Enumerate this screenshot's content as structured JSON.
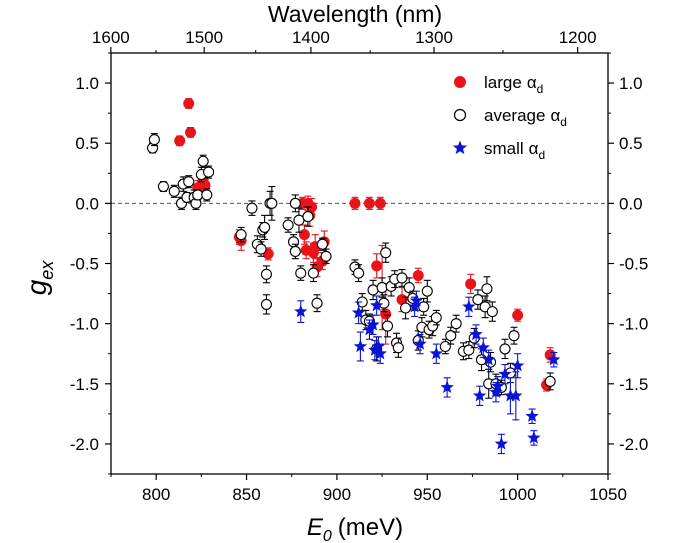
{
  "chart_data": {
    "type": "scatter",
    "title": "",
    "xlabel": "E",
    "xlabel_sub": "0",
    "xlabel_unit": "(meV)",
    "ylabel": "g",
    "ylabel_sub": "ex",
    "top_xlabel": "Wavelength (nm)",
    "xlim": [
      775,
      1050
    ],
    "ylim": [
      -2.25,
      1.25
    ],
    "x_ticks": [
      800,
      850,
      900,
      950,
      1000,
      1050
    ],
    "x_tick_labels": [
      "800",
      "850",
      "900",
      "950",
      "1000",
      "1050"
    ],
    "y_ticks": [
      1.0,
      0.5,
      0.0,
      -0.5,
      -1.0,
      -1.5,
      -2.0
    ],
    "y_tick_labels": [
      "1.0",
      "0.5",
      "0.0",
      "-0.5",
      "-1.0",
      "-1.5",
      "-2.0"
    ],
    "top_ticks_nm": [
      1600,
      1500,
      1400,
      1300,
      1200
    ],
    "top_tick_labels": [
      "1600",
      "1500",
      "1400",
      "1300",
      "1200"
    ],
    "reference_line_y": 0,
    "legend_position": "top-right",
    "series": [
      {
        "name": "large",
        "name_sub": "d",
        "marker": "filled-circle",
        "color": "#e8141a",
        "points": [
          [
            813,
            0.52,
            0.04
          ],
          [
            818,
            0.83,
            0.04
          ],
          [
            819,
            0.59,
            0.04
          ],
          [
            823,
            0.13,
            0.06
          ],
          [
            825,
            0.13,
            0.05
          ],
          [
            826,
            0.19,
            0.05
          ],
          [
            827,
            0.15,
            0.04
          ],
          [
            846,
            -0.28,
            0.06
          ],
          [
            847,
            -0.31,
            0.08
          ],
          [
            862,
            -0.42,
            0.05
          ],
          [
            881,
            0.0,
            0.05
          ],
          [
            882,
            -0.26,
            0.08
          ],
          [
            883,
            -0.39,
            0.07
          ],
          [
            884,
            0.0,
            0.06
          ],
          [
            885,
            -0.1,
            0.09
          ],
          [
            886,
            -0.03,
            0.07
          ],
          [
            887,
            -0.41,
            0.08
          ],
          [
            888,
            -0.36,
            0.1
          ],
          [
            889,
            -0.53,
            0.08
          ],
          [
            892,
            -0.48,
            0.07
          ],
          [
            893,
            -0.32,
            0.09
          ],
          [
            910,
            0.0,
            0.05
          ],
          [
            918,
            0.0,
            0.05
          ],
          [
            922,
            -0.52,
            0.1
          ],
          [
            924,
            0.0,
            0.05
          ],
          [
            925,
            -0.7,
            0.35
          ],
          [
            927,
            -0.92,
            0.25
          ],
          [
            936,
            -0.8,
            0.1
          ],
          [
            945,
            -0.6,
            0.06
          ],
          [
            974,
            -0.67,
            0.08
          ],
          [
            1000,
            -0.93,
            0.05
          ],
          [
            1016,
            -1.51,
            0.05
          ],
          [
            1018,
            -1.26,
            0.06
          ]
        ]
      },
      {
        "name": "average",
        "name_sub": "d",
        "marker": "open-circle",
        "color": "#000000",
        "points": [
          [
            798,
            0.46,
            0.04
          ],
          [
            799,
            0.53,
            0.05
          ],
          [
            804,
            0.14,
            0.04
          ],
          [
            810,
            0.1,
            0.05
          ],
          [
            814,
            0.0,
            0.05
          ],
          [
            815,
            0.16,
            0.06
          ],
          [
            817,
            0.05,
            0.04
          ],
          [
            818,
            0.18,
            0.05
          ],
          [
            821,
            0.05,
            0.06
          ],
          [
            822,
            0.0,
            0.05
          ],
          [
            823,
            0.07,
            0.04
          ],
          [
            825,
            0.24,
            0.06
          ],
          [
            826,
            0.35,
            0.05
          ],
          [
            828,
            0.07,
            0.05
          ],
          [
            829,
            0.26,
            0.05
          ],
          [
            847,
            -0.26,
            0.06
          ],
          [
            853,
            -0.04,
            0.06
          ],
          [
            856,
            -0.34,
            0.07
          ],
          [
            858,
            -0.38,
            0.06
          ],
          [
            859,
            -0.22,
            0.06
          ],
          [
            860,
            -0.2,
            0.1
          ],
          [
            861,
            -0.84,
            0.08
          ],
          [
            861,
            -0.59,
            0.07
          ],
          [
            863,
            0.0,
            0.1
          ],
          [
            864,
            0.0,
            0.14
          ],
          [
            873,
            -0.18,
            0.06
          ],
          [
            876,
            -0.32,
            0.06
          ],
          [
            877,
            -0.4,
            0.06
          ],
          [
            877,
            0.0,
            0.07
          ],
          [
            879,
            -0.14,
            0.1
          ],
          [
            880,
            -0.58,
            0.06
          ],
          [
            884,
            -0.11,
            0.08
          ],
          [
            887,
            -0.58,
            0.07
          ],
          [
            889,
            -0.83,
            0.07
          ],
          [
            892,
            -0.34,
            0.05
          ],
          [
            894,
            -0.44,
            0.06
          ],
          [
            910,
            -0.53,
            0.06
          ],
          [
            912,
            -0.58,
            0.07
          ],
          [
            914,
            -0.82,
            0.07
          ],
          [
            916,
            -0.97,
            0.08
          ],
          [
            918,
            -0.98,
            0.06
          ],
          [
            920,
            -0.72,
            0.08
          ],
          [
            922,
            -1.21,
            0.1
          ],
          [
            925,
            -0.7,
            0.08
          ],
          [
            926,
            -0.83,
            0.07
          ],
          [
            927,
            -0.41,
            0.08
          ],
          [
            928,
            -1.02,
            0.09
          ],
          [
            930,
            -0.69,
            0.08
          ],
          [
            932,
            -0.63,
            0.07
          ],
          [
            933,
            -1.16,
            0.08
          ],
          [
            934,
            -1.2,
            0.08
          ],
          [
            936,
            -0.62,
            0.07
          ],
          [
            938,
            -0.87,
            0.09
          ],
          [
            940,
            -0.7,
            0.08
          ],
          [
            942,
            -0.79,
            0.06
          ],
          [
            945,
            -1.14,
            0.08
          ],
          [
            947,
            -1.03,
            0.08
          ],
          [
            948,
            -0.86,
            0.07
          ],
          [
            950,
            -0.73,
            0.09
          ],
          [
            951,
            -1.05,
            0.07
          ],
          [
            953,
            -1.02,
            0.08
          ],
          [
            955,
            -0.95,
            0.06
          ],
          [
            960,
            -1.19,
            0.06
          ],
          [
            963,
            -1.1,
            0.07
          ],
          [
            966,
            -1.0,
            0.07
          ],
          [
            970,
            -1.23,
            0.07
          ],
          [
            973,
            -1.22,
            0.07
          ],
          [
            976,
            -1.12,
            0.08
          ],
          [
            978,
            -0.8,
            0.08
          ],
          [
            980,
            -1.3,
            0.09
          ],
          [
            982,
            -0.86,
            0.09
          ],
          [
            983,
            -0.71,
            0.1
          ],
          [
            984,
            -1.5,
            0.12
          ],
          [
            985,
            -1.32,
            0.08
          ],
          [
            986,
            -0.9,
            0.08
          ],
          [
            988,
            -1.5,
            0.08
          ],
          [
            991,
            -1.53,
            0.06
          ],
          [
            993,
            -1.21,
            0.08
          ],
          [
            996,
            -1.41,
            0.08
          ],
          [
            998,
            -1.1,
            0.07
          ],
          [
            1018,
            -1.48,
            0.07
          ]
        ]
      },
      {
        "name": "small",
        "name_sub": "d",
        "marker": "star",
        "color": "#0a14d6",
        "points": [
          [
            880,
            -0.9,
            0.09
          ],
          [
            912,
            -0.91,
            0.09
          ],
          [
            913,
            -1.19,
            0.12
          ],
          [
            918,
            -1.05,
            0.08
          ],
          [
            920,
            -1.01,
            0.08
          ],
          [
            921,
            -1.22,
            0.08
          ],
          [
            922,
            -0.85,
            0.08
          ],
          [
            923,
            -1.19,
            0.08
          ],
          [
            924,
            -1.25,
            0.08
          ],
          [
            943,
            -0.86,
            0.08
          ],
          [
            944,
            -0.81,
            0.08
          ],
          [
            946,
            -1.17,
            0.08
          ],
          [
            955,
            -1.25,
            0.08
          ],
          [
            961,
            -1.53,
            0.08
          ],
          [
            973,
            -0.86,
            0.08
          ],
          [
            977,
            -1.09,
            0.08
          ],
          [
            979,
            -1.6,
            0.08
          ],
          [
            981,
            -1.2,
            0.08
          ],
          [
            984,
            -1.3,
            0.08
          ],
          [
            988,
            -1.57,
            0.08
          ],
          [
            989,
            -1.52,
            0.08
          ],
          [
            991,
            -2.0,
            0.08
          ],
          [
            993,
            -1.42,
            0.08
          ],
          [
            996,
            -1.6,
            0.15
          ],
          [
            999,
            -1.6,
            0.2
          ],
          [
            1000,
            -1.35,
            0.1
          ],
          [
            1008,
            -1.77,
            0.06
          ],
          [
            1009,
            -1.95,
            0.06
          ],
          [
            1020,
            -1.3,
            0.06
          ]
        ]
      }
    ]
  }
}
